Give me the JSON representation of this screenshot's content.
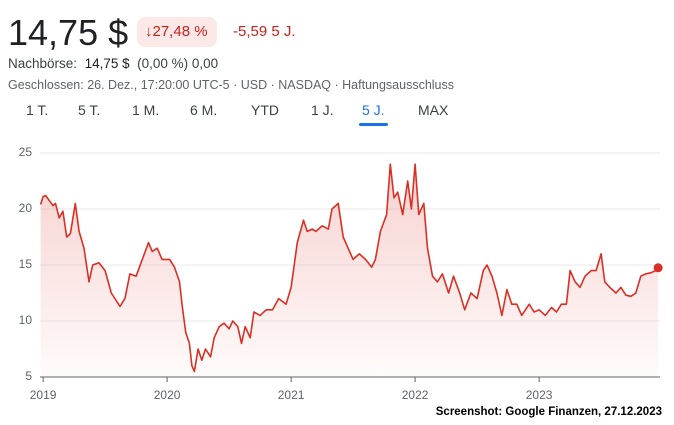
{
  "header": {
    "price": "14,75 $",
    "change_percent": "↓27,48 %",
    "change": "-5,59 5 J.",
    "after_hours_label": "Nachbörse:",
    "after_hours_price": "14,75 $",
    "after_hours_change": "(0,00 %) 0,00",
    "status": "Geschlossen: 26. Dez., 17:20:00 UTC-5 · USD · NASDAQ · Haftungsausschluss"
  },
  "tabs": [
    "1 T.",
    "5 T.",
    "1 M.",
    "6 M.",
    "YTD",
    "1 J.",
    "5 J.",
    "MAX"
  ],
  "selected_tab": 6,
  "footer": "Screenshot: Google Finanzen, 27.12.2023",
  "chart_data": {
    "type": "area",
    "color": "#d93025",
    "grid": true,
    "xlim": [
      2018.975,
      2023.975
    ],
    "xticks": [
      2019,
      2020,
      2021,
      2022,
      2023
    ],
    "ylim": [
      5,
      25.3
    ],
    "yticks": [
      5,
      10,
      15,
      20,
      25
    ],
    "x": [
      2018.98,
      2019.0,
      2019.02,
      2019.06,
      2019.08,
      2019.1,
      2019.13,
      2019.16,
      2019.19,
      2019.22,
      2019.26,
      2019.29,
      2019.33,
      2019.37,
      2019.4,
      2019.45,
      2019.5,
      2019.55,
      2019.62,
      2019.66,
      2019.7,
      2019.75,
      2019.8,
      2019.85,
      2019.88,
      2019.92,
      2019.96,
      2020.02,
      2020.06,
      2020.1,
      2020.12,
      2020.15,
      2020.18,
      2020.2,
      2020.22,
      2020.25,
      2020.28,
      2020.31,
      2020.35,
      2020.38,
      2020.42,
      2020.46,
      2020.5,
      2020.53,
      2020.57,
      2020.6,
      2020.63,
      2020.67,
      2020.7,
      2020.75,
      2020.8,
      2020.85,
      2020.9,
      2020.96,
      2021.0,
      2021.05,
      2021.1,
      2021.13,
      2021.17,
      2021.2,
      2021.25,
      2021.3,
      2021.33,
      2021.38,
      2021.42,
      2021.46,
      2021.5,
      2021.55,
      2021.6,
      2021.65,
      2021.68,
      2021.72,
      2021.77,
      2021.8,
      2021.83,
      2021.86,
      2021.9,
      2021.94,
      2021.97,
      2022.0,
      2022.03,
      2022.07,
      2022.1,
      2022.14,
      2022.18,
      2022.22,
      2022.27,
      2022.31,
      2022.36,
      2022.4,
      2022.45,
      2022.5,
      2022.55,
      2022.58,
      2022.62,
      2022.66,
      2022.7,
      2022.74,
      2022.78,
      2022.82,
      2022.86,
      2022.92,
      2022.96,
      2023.0,
      2023.05,
      2023.1,
      2023.14,
      2023.18,
      2023.22,
      2023.25,
      2023.29,
      2023.33,
      2023.37,
      2023.42,
      2023.46,
      2023.5,
      2023.53,
      2023.57,
      2023.62,
      2023.66,
      2023.7,
      2023.74,
      2023.78,
      2023.82,
      2023.86,
      2023.9,
      2023.94,
      2023.96
    ],
    "values": [
      20.4,
      21.1,
      21.2,
      20.6,
      20.3,
      20.5,
      19.2,
      19.8,
      17.5,
      17.8,
      20.5,
      18,
      16.5,
      13.5,
      15,
      15.2,
      14.5,
      12.5,
      11.3,
      12,
      14.2,
      14,
      15.5,
      17,
      16.2,
      16.5,
      15.5,
      15.5,
      14.8,
      13.5,
      11.5,
      9,
      8,
      6,
      5.5,
      7.5,
      6.5,
      7.5,
      6.8,
      8.5,
      9.5,
      9.8,
      9.3,
      10,
      9.5,
      8,
      9.5,
      8.5,
      10.8,
      10.5,
      11,
      11,
      12,
      11.5,
      13,
      17,
      19,
      18,
      18.2,
      18,
      18.5,
      18.2,
      20,
      20.5,
      17.5,
      16.5,
      15.5,
      16,
      15.5,
      14.8,
      15.5,
      18,
      19.5,
      24,
      21,
      21.5,
      19.5,
      22.5,
      20,
      24,
      19.5,
      20.5,
      16.5,
      14,
      13.5,
      14.2,
      12.5,
      14,
      12.5,
      11,
      12.5,
      12,
      14.5,
      15,
      14,
      12.5,
      10.5,
      12.8,
      11.5,
      11.5,
      10.5,
      11.5,
      10.8,
      11,
      10.5,
      11.2,
      10.8,
      11.5,
      11.5,
      14.5,
      13.5,
      13,
      14,
      14.5,
      14.5,
      16,
      13.5,
      13,
      12.5,
      13,
      12.3,
      12.2,
      12.5,
      14,
      14.2,
      14.3,
      14.5,
      14.75
    ]
  }
}
